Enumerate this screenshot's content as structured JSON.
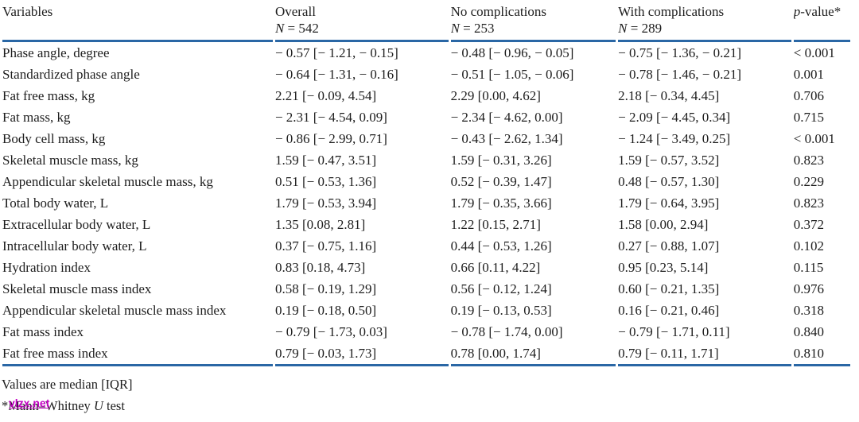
{
  "colors": {
    "rule_blue": "#2a67a5",
    "text": "#1d1d1d",
    "watermark_magenta": "#c303c3",
    "background": "#ffffff"
  },
  "table": {
    "columns": [
      {
        "label": "Variables"
      },
      {
        "label": "Overall",
        "n_symbol": "N",
        "n_rest": " = 542"
      },
      {
        "label": "No complications",
        "n_symbol": "N",
        "n_rest": " = 253"
      },
      {
        "label": "With complications",
        "n_symbol": "N",
        "n_rest": " = 289"
      },
      {
        "p_symbol": "p",
        "p_rest": "-value*"
      }
    ],
    "rows": [
      [
        "Phase angle, degree",
        "− 0.57 [− 1.21, − 0.15]",
        "− 0.48 [− 0.96, − 0.05]",
        "− 0.75 [− 1.36, − 0.21]",
        "< 0.001"
      ],
      [
        "Standardized phase angle",
        "− 0.64 [− 1.31, − 0.16]",
        "− 0.51 [− 1.05, − 0.06]",
        "− 0.78 [− 1.46, − 0.21]",
        "0.001"
      ],
      [
        "Fat free mass, kg",
        "2.21 [− 0.09, 4.54]",
        "2.29 [0.00, 4.62]",
        "2.18 [− 0.34, 4.45]",
        "0.706"
      ],
      [
        "Fat mass, kg",
        "− 2.31 [− 4.54, 0.09]",
        "− 2.34 [− 4.62, 0.00]",
        "− 2.09 [− 4.45, 0.34]",
        "0.715"
      ],
      [
        "Body cell mass, kg",
        "− 0.86 [− 2.99, 0.71]",
        "− 0.43 [− 2.62, 1.34]",
        "− 1.24 [− 3.49, 0.25]",
        "< 0.001"
      ],
      [
        "Skeletal muscle mass, kg",
        "1.59 [− 0.47, 3.51]",
        "1.59 [− 0.31, 3.26]",
        "1.59 [− 0.57, 3.52]",
        "0.823"
      ],
      [
        "Appendicular skeletal muscle mass, kg",
        "0.51 [− 0.53, 1.36]",
        "0.52 [− 0.39, 1.47]",
        "0.48 [− 0.57, 1.30]",
        "0.229"
      ],
      [
        "Total body water, L",
        "1.79 [− 0.53, 3.94]",
        "1.79 [− 0.35, 3.66]",
        "1.79 [− 0.64, 3.95]",
        "0.823"
      ],
      [
        "Extracellular body water, L",
        "1.35 [0.08, 2.81]",
        "1.22 [0.15, 2.71]",
        "1.58 [0.00, 2.94]",
        "0.372"
      ],
      [
        "Intracellular body water, L",
        "0.37 [− 0.75, 1.16]",
        "0.44 [− 0.53, 1.26]",
        "0.27 [− 0.88, 1.07]",
        "0.102"
      ],
      [
        "Hydration index",
        "0.83 [0.18, 4.73]",
        "0.66 [0.11, 4.22]",
        "0.95 [0.23, 5.14]",
        "0.115"
      ],
      [
        "Skeletal muscle mass index",
        "0.58 [− 0.19, 1.29]",
        "0.56 [− 0.12, 1.24]",
        "0.60 [− 0.21, 1.35]",
        "0.976"
      ],
      [
        "Appendicular skeletal muscle mass index",
        "0.19 [− 0.18, 0.50]",
        "0.19 [− 0.13, 0.53]",
        "0.16 [− 0.21, 0.46]",
        "0.318"
      ],
      [
        "Fat mass index",
        "− 0.79 [− 1.73, 0.03]",
        "− 0.78 [− 1.74, 0.00]",
        "− 0.79 [− 1.71, 0.11]",
        "0.840"
      ],
      [
        "Fat free mass index",
        "0.79 [− 0.03, 1.73]",
        "0.78 [0.00, 1.74]",
        "0.79 [− 0.11, 1.71]",
        "0.810"
      ]
    ]
  },
  "notes": {
    "median": "Values are median [IQR]",
    "test_prefix": "*Mann–Whitney ",
    "test_symbol": "U",
    "test_suffix": " test"
  },
  "watermark": {
    "text": "vlzx.net"
  }
}
